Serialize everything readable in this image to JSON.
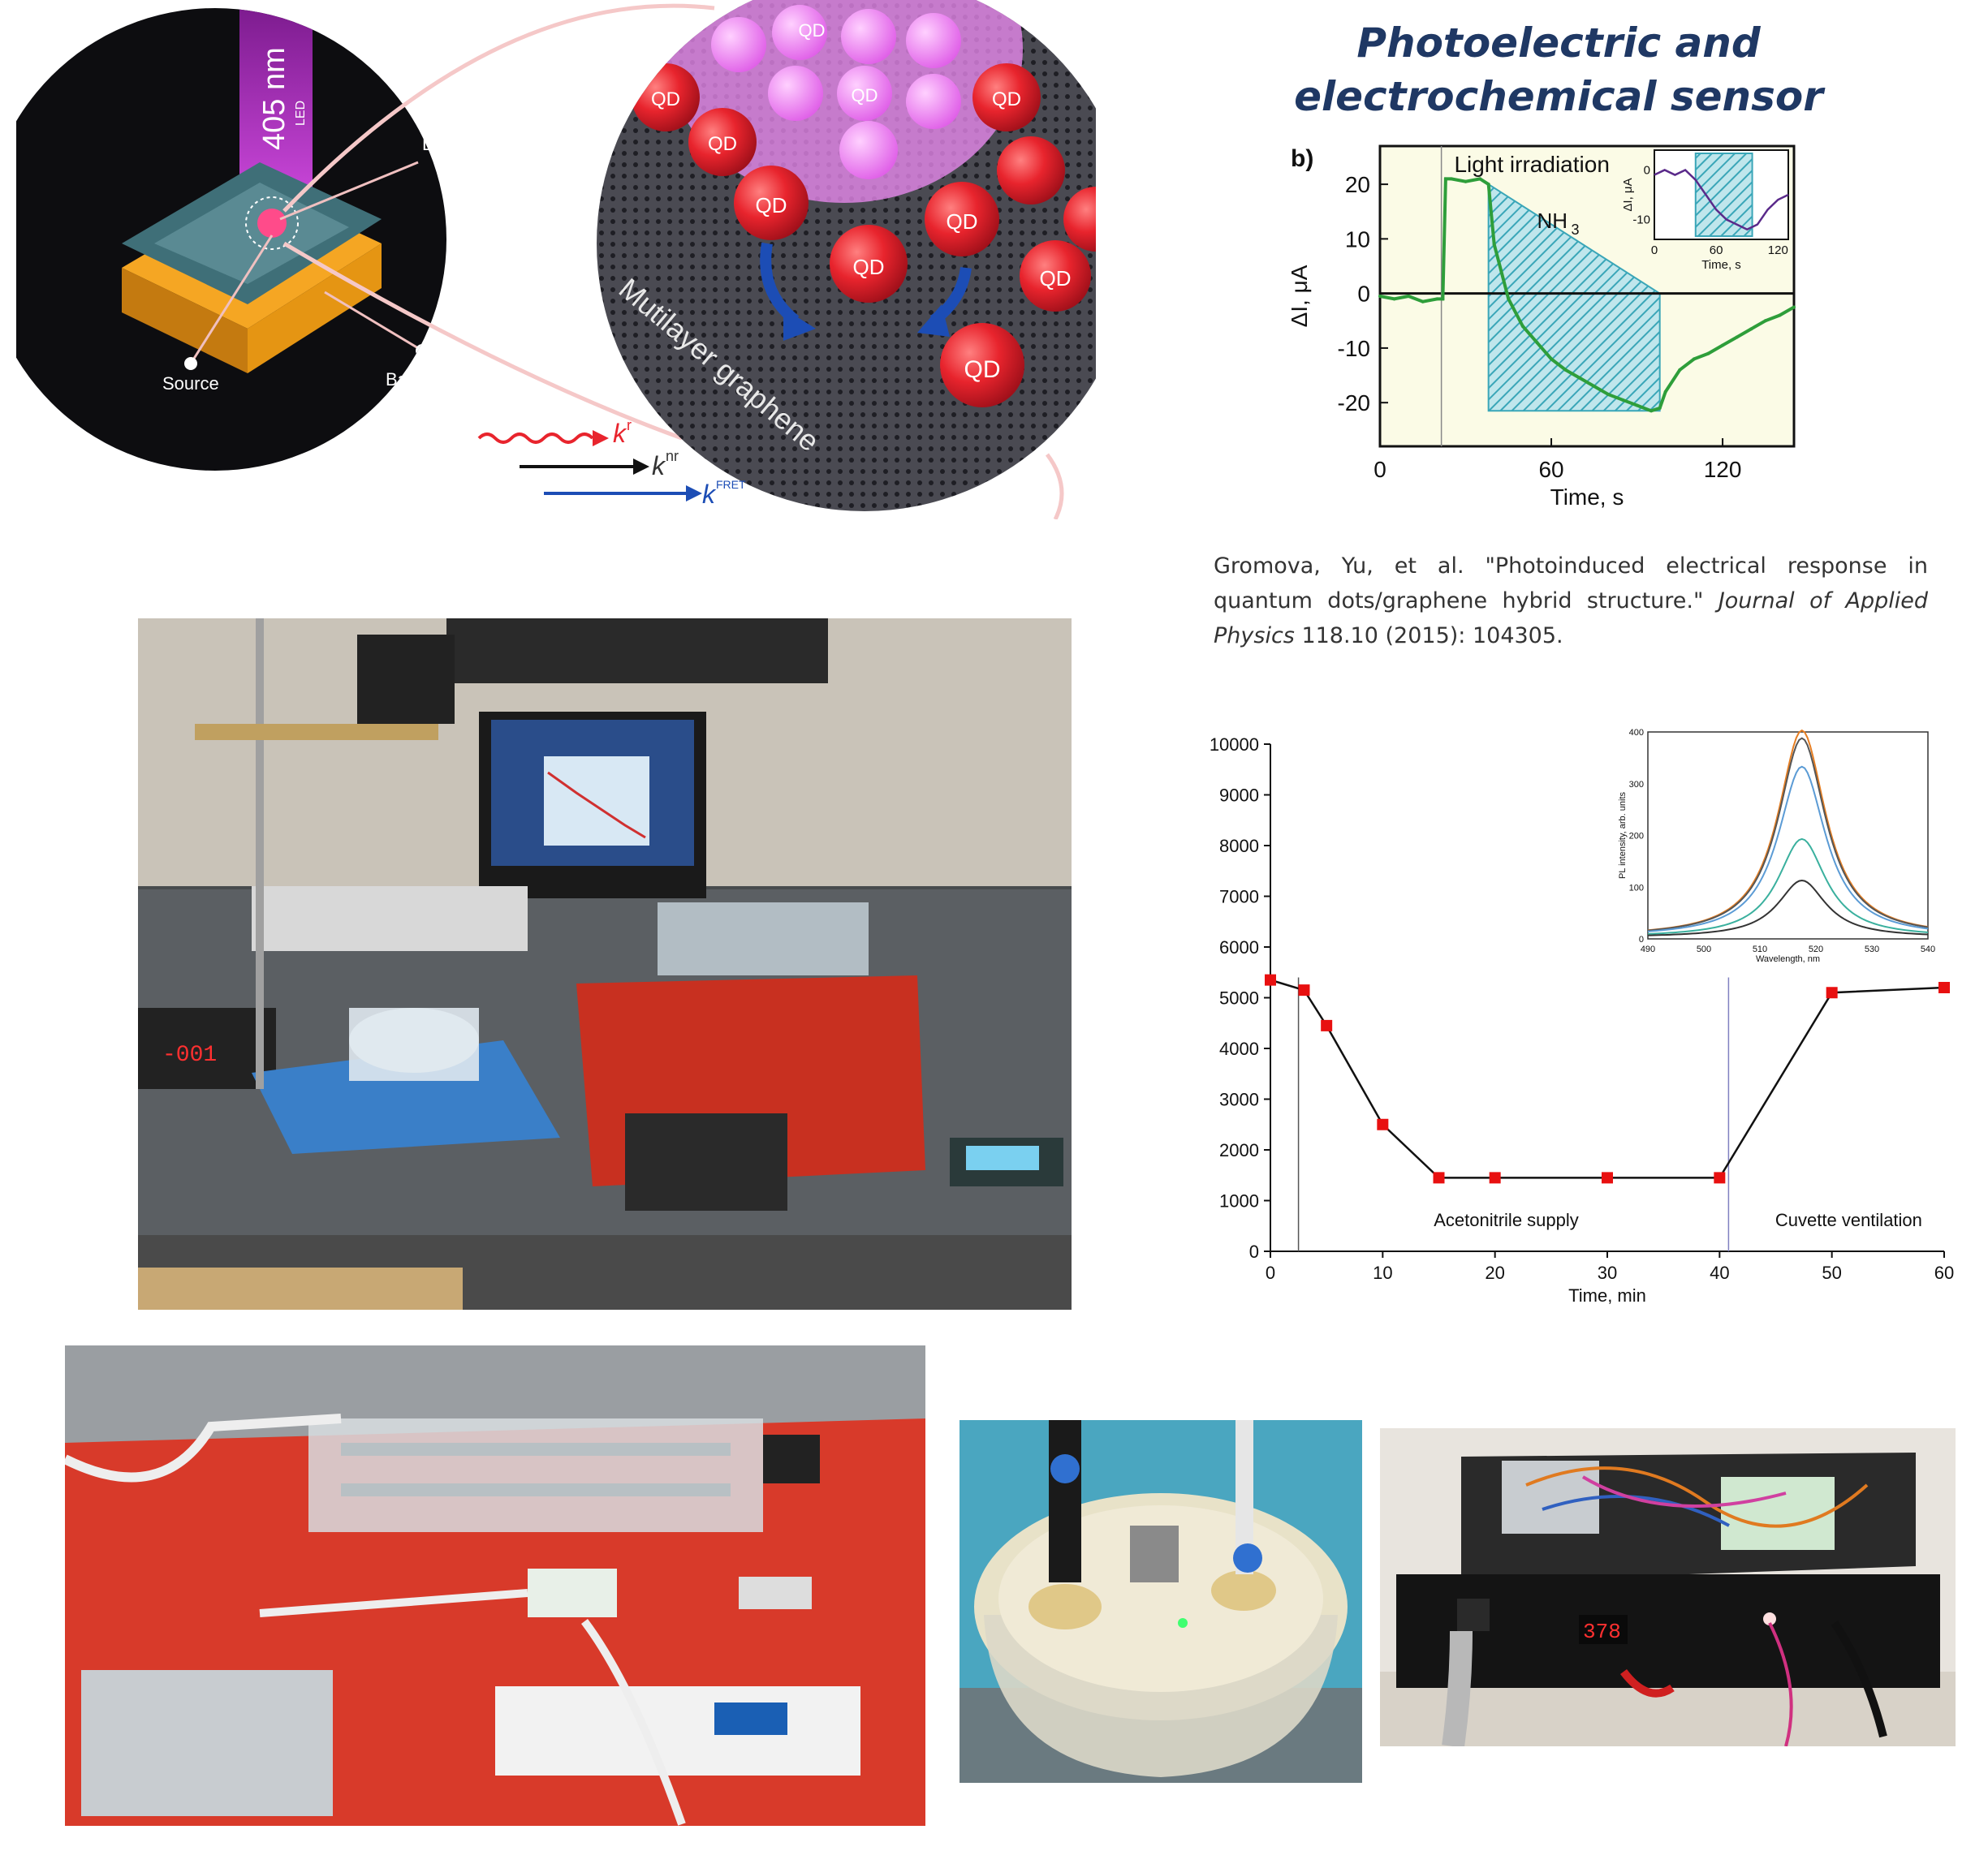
{
  "title": {
    "line1": "Photoelectric and",
    "line2": "electrochemical sensor"
  },
  "schematic": {
    "led_label": "405 nm",
    "led_sub": "LED",
    "drain": "Drain",
    "source": "Source",
    "backgate": "Backgate",
    "qd": "QD",
    "graphene": "Mutilayer graphene",
    "kr": "k",
    "kr_sup": "r",
    "knr": "k",
    "knr_sup": "nr",
    "kfret": "k",
    "kfret_sup": "FRET",
    "colors": {
      "beam": "#b020c0",
      "device_top": "#3f6f78",
      "device_base": "#f5a623",
      "qd": "#e8242d"
    }
  },
  "chart_b": {
    "panel_label": "b)",
    "annotation_light": "Light irradiation",
    "annotation_gas": "NH",
    "annotation_gas_sub": "3",
    "ylabel": "ΔI, μA",
    "xlabel": "Time, s",
    "inset_ylabel": "ΔI, μA",
    "inset_xlabel": "Time, s",
    "line_color": "#2e9e3a",
    "hatch_color": "#3aa6b8"
  },
  "citation": {
    "authors": "Gromova, Yu, et al. \"Photoinduced electrical response in quantum dots/graphene hybrid structure.\" ",
    "journal": "Journal of Applied Physics",
    "rest": " 118.10 (2015): 104305."
  },
  "chart_data": [
    {
      "type": "line",
      "xlabel": "Time, s",
      "ylabel": "ΔI, μA",
      "xlim": [
        0,
        145
      ],
      "ylim": [
        -28,
        27
      ],
      "xticks": [
        0,
        60,
        120
      ],
      "yticks": [
        -20,
        -10,
        0,
        10,
        20
      ],
      "annotations": [
        "Light irradiation",
        "NH3"
      ],
      "series": [
        {
          "x": [
            0,
            5,
            10,
            15,
            20,
            22,
            23,
            25,
            30,
            35,
            38,
            40,
            45,
            50,
            55,
            60,
            65,
            70,
            75,
            80,
            85,
            90,
            95,
            98,
            100,
            105,
            110,
            115,
            120,
            125,
            130,
            135,
            140,
            145
          ],
          "y": [
            -0.5,
            -1,
            -0.5,
            -1.5,
            -1,
            -1,
            21,
            21,
            20.5,
            21,
            20,
            9,
            -1,
            -6,
            -9,
            -12,
            -14,
            -15.5,
            -17,
            -18.5,
            -19.5,
            -20.5,
            -21.5,
            -21,
            -18,
            -14,
            -12,
            -11,
            -9.5,
            -8,
            -6.5,
            -5,
            -4,
            -2.5
          ]
        }
      ]
    },
    {
      "type": "line",
      "xlabel": "Time, s",
      "ylabel": "ΔI, μA",
      "xlim": [
        0,
        130
      ],
      "ylim": [
        -14,
        4
      ],
      "xticks": [
        0,
        60,
        120
      ],
      "yticks": [
        0,
        -10
      ],
      "series": [
        {
          "x": [
            0,
            10,
            20,
            30,
            40,
            50,
            60,
            70,
            80,
            90,
            100,
            110,
            120,
            130
          ],
          "y": [
            -1,
            0,
            -1,
            0,
            -2,
            -5,
            -8,
            -10,
            -11,
            -12,
            -11,
            -8,
            -6,
            -5
          ]
        }
      ]
    },
    {
      "type": "line",
      "xlabel": "Time, min",
      "ylabel": "",
      "xlim": [
        0,
        60
      ],
      "ylim": [
        0,
        10000
      ],
      "xticks": [
        0,
        10,
        20,
        30,
        40,
        50,
        60
      ],
      "yticks": [
        0,
        1000,
        2000,
        3000,
        4000,
        5000,
        6000,
        7000,
        8000,
        9000,
        10000
      ],
      "annotations": [
        "Acetonitrile supply",
        "Cuvette ventilation"
      ],
      "vlines": [
        2.5,
        40.8
      ],
      "series": [
        {
          "x": [
            0,
            3,
            5,
            10,
            15,
            20,
            30,
            40,
            50,
            60
          ],
          "y": [
            5350,
            5150,
            4450,
            2500,
            1450,
            1450,
            1450,
            1450,
            5100,
            5200
          ]
        }
      ]
    },
    {
      "type": "line",
      "xlabel": "Wavelength, nm",
      "ylabel": "PL intensity, arb. units",
      "xlim": [
        490,
        540
      ],
      "ylim": [
        0,
        400
      ],
      "xticks": [
        490,
        500,
        510,
        520,
        530,
        540
      ],
      "yticks": [
        0,
        100,
        200,
        300,
        400
      ],
      "series": [
        {
          "peak": 400,
          "color": "#e67e22"
        },
        {
          "peak": 385,
          "color": "#555555"
        },
        {
          "peak": 330,
          "color": "#5b9bd5"
        },
        {
          "peak": 190,
          "color": "#3ab09e"
        },
        {
          "peak": 110,
          "color": "#333333"
        }
      ]
    }
  ]
}
